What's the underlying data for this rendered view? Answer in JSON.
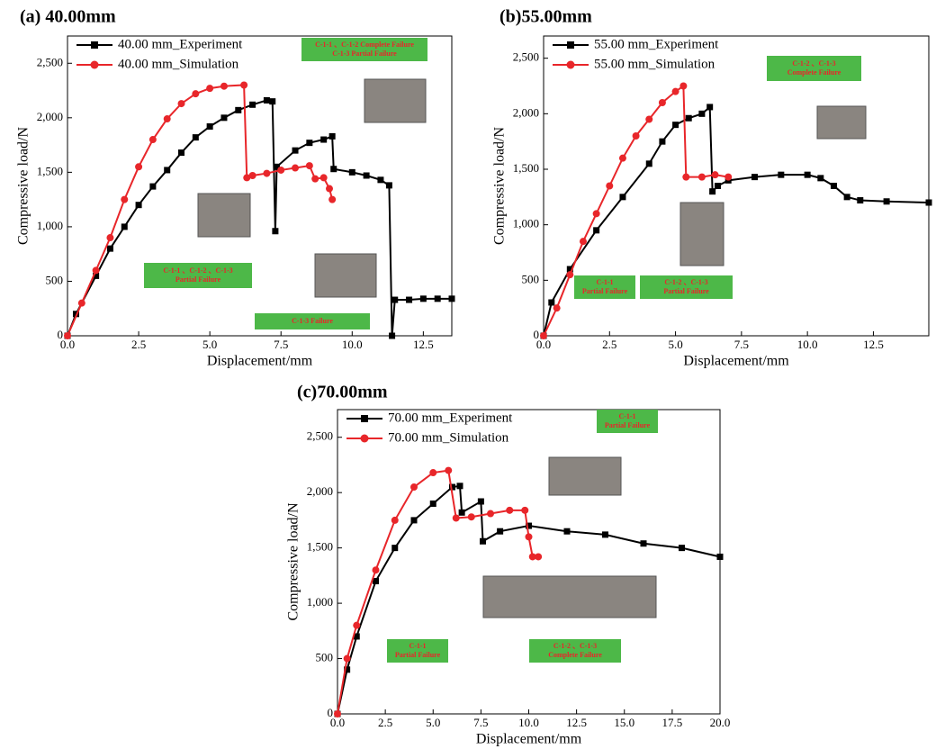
{
  "chart_data": [
    {
      "type": "line",
      "title": "(a) 40.00mm",
      "xlabel": "Displacement/mm",
      "ylabel": "Compressive load/N",
      "xlim": [
        0,
        13.5
      ],
      "ylim": [
        0,
        2750
      ],
      "xticks": [
        {
          "value": 0,
          "label": "0.0"
        },
        {
          "value": 2.5,
          "label": "2.5"
        },
        {
          "value": 5,
          "label": "5.0"
        },
        {
          "value": 7.5,
          "label": "7.5"
        },
        {
          "value": 10,
          "label": "10.0"
        },
        {
          "value": 12.5,
          "label": "12.5"
        }
      ],
      "yticks": [
        0,
        500,
        {
          "value": 1000,
          "label": "1,000"
        },
        {
          "value": 1500,
          "label": "1,500"
        },
        {
          "value": 2000,
          "label": "2,000"
        },
        {
          "value": 2500,
          "label": "2,500"
        }
      ],
      "legend": "upper left",
      "series": [
        {
          "name": "40.00 mm_Experiment",
          "color": "#000000",
          "marker": "square",
          "x": [
            0,
            0.3,
            1,
            1.5,
            2,
            2.5,
            3,
            3.5,
            4,
            4.5,
            5,
            5.5,
            6,
            6.5,
            7,
            7.2,
            7.3,
            7.35,
            8,
            8.5,
            9,
            9.3,
            9.35,
            10,
            10.5,
            11,
            11.3,
            11.4,
            11.5,
            12,
            12.5,
            13,
            13.5
          ],
          "values": [
            0,
            200,
            550,
            800,
            1000,
            1200,
            1370,
            1520,
            1680,
            1820,
            1920,
            2000,
            2070,
            2120,
            2160,
            2150,
            960,
            1550,
            1700,
            1770,
            1800,
            1830,
            1530,
            1500,
            1470,
            1430,
            1380,
            0,
            330,
            330,
            340,
            340,
            340
          ]
        },
        {
          "name": "40.00 mm_Simulation",
          "color": "#e8262a",
          "marker": "circle",
          "x": [
            0,
            0.5,
            1,
            1.5,
            2,
            2.5,
            3,
            3.5,
            4,
            4.5,
            5,
            5.5,
            6.2,
            6.3,
            6.5,
            7,
            7.5,
            8,
            8.5,
            8.7,
            9,
            9.2,
            9.3
          ],
          "values": [
            0,
            300,
            600,
            900,
            1250,
            1550,
            1800,
            1990,
            2130,
            2220,
            2270,
            2290,
            2300,
            1450,
            1470,
            1490,
            1520,
            1540,
            1560,
            1440,
            1450,
            1350,
            1250
          ]
        }
      ],
      "annotations": [
        [
          "C-1-1 、C-1-2 Complete Failure",
          "C-1-3 Partial Failure"
        ],
        [
          "C-1-1 、C-1-2 、C-1-3",
          "Partial Failure"
        ],
        [
          "C-1-3 Failure"
        ]
      ]
    },
    {
      "type": "line",
      "title": "(b)55.00mm",
      "xlabel": "Displacement/mm",
      "ylabel": "Compressive load/N",
      "xlim": [
        0,
        14.6
      ],
      "ylim": [
        0,
        2700
      ],
      "xticks": [
        {
          "value": 0,
          "label": "0.0"
        },
        {
          "value": 2.5,
          "label": "2.5"
        },
        {
          "value": 5,
          "label": "5.0"
        },
        {
          "value": 7.5,
          "label": "7.5"
        },
        {
          "value": 10,
          "label": "10.0"
        },
        {
          "value": 12.5,
          "label": "12.5"
        }
      ],
      "yticks": [
        0,
        500,
        {
          "value": 1000,
          "label": "1,000"
        },
        {
          "value": 1500,
          "label": "1,500"
        },
        {
          "value": 2000,
          "label": "2,000"
        },
        {
          "value": 2500,
          "label": "2,500"
        }
      ],
      "legend": "upper left",
      "series": [
        {
          "name": "55.00 mm_Experiment",
          "color": "#000000",
          "marker": "square",
          "x": [
            0,
            0.3,
            1,
            2,
            3,
            4,
            4.5,
            5,
            5.5,
            6,
            6.3,
            6.4,
            6.6,
            7,
            8,
            9,
            10,
            10.5,
            11,
            11.5,
            12,
            13,
            14.6
          ],
          "values": [
            0,
            300,
            600,
            950,
            1250,
            1550,
            1750,
            1900,
            1960,
            2000,
            2060,
            1300,
            1350,
            1400,
            1430,
            1450,
            1450,
            1420,
            1350,
            1250,
            1220,
            1210,
            1200
          ]
        },
        {
          "name": "55.00 mm_Simulation",
          "color": "#e8262a",
          "marker": "circle",
          "x": [
            0,
            0.5,
            1,
            1.5,
            2,
            2.5,
            3,
            3.5,
            4,
            4.5,
            5,
            5.3,
            5.4,
            6,
            6.5,
            7
          ],
          "values": [
            0,
            250,
            550,
            850,
            1100,
            1350,
            1600,
            1800,
            1950,
            2100,
            2200,
            2250,
            1430,
            1430,
            1450,
            1430
          ]
        }
      ],
      "annotations": [
        [
          "C-1-2 、C-1-3",
          "Complete Failure"
        ],
        [
          "C-1-1",
          "Partial Failure"
        ],
        [
          "C-1-2 、C-1-3",
          "Partial Failure"
        ]
      ]
    },
    {
      "type": "line",
      "title": "(c)70.00mm",
      "xlabel": "Displacement/mm",
      "ylabel": "Compressive load/N",
      "xlim": [
        0,
        20
      ],
      "ylim": [
        0,
        2750
      ],
      "xticks": [
        {
          "value": 0,
          "label": "0.0"
        },
        {
          "value": 2.5,
          "label": "2.5"
        },
        {
          "value": 5,
          "label": "5.0"
        },
        {
          "value": 7.5,
          "label": "7.5"
        },
        {
          "value": 10,
          "label": "10.0"
        },
        {
          "value": 12.5,
          "label": "12.5"
        },
        {
          "value": 15,
          "label": "15.0"
        },
        {
          "value": 17.5,
          "label": "17.5"
        },
        {
          "value": 20,
          "label": "20.0"
        }
      ],
      "yticks": [
        0,
        500,
        {
          "value": 1000,
          "label": "1,000"
        },
        {
          "value": 1500,
          "label": "1,500"
        },
        {
          "value": 2000,
          "label": "2,000"
        },
        {
          "value": 2500,
          "label": "2,500"
        }
      ],
      "legend": "upper left",
      "series": [
        {
          "name": "70.00 mm_Experiment",
          "color": "#000000",
          "marker": "square",
          "x": [
            0,
            0.5,
            1,
            2,
            3,
            4,
            5,
            6,
            6.4,
            6.5,
            7.5,
            7.6,
            8.5,
            10,
            12,
            14,
            16,
            18,
            20
          ],
          "values": [
            0,
            400,
            700,
            1200,
            1500,
            1750,
            1900,
            2050,
            2060,
            1820,
            1920,
            1560,
            1650,
            1700,
            1650,
            1620,
            1540,
            1500,
            1420
          ]
        },
        {
          "name": "70.00 mm_Simulation",
          "color": "#e8262a",
          "marker": "circle",
          "x": [
            0,
            0.5,
            1,
            2,
            3,
            4,
            5,
            5.8,
            6.2,
            7,
            8,
            9,
            9.8,
            10,
            10.2,
            10.5
          ],
          "values": [
            0,
            500,
            800,
            1300,
            1750,
            2050,
            2180,
            2200,
            1770,
            1780,
            1810,
            1840,
            1840,
            1600,
            1420,
            1420
          ]
        }
      ],
      "annotations": [
        [
          "C-1-1",
          "Partial Failure"
        ],
        [
          "C-1-1",
          "Partial Failure"
        ],
        [
          "C-1-2 、C-1-3",
          "Complete Failure"
        ]
      ]
    }
  ]
}
